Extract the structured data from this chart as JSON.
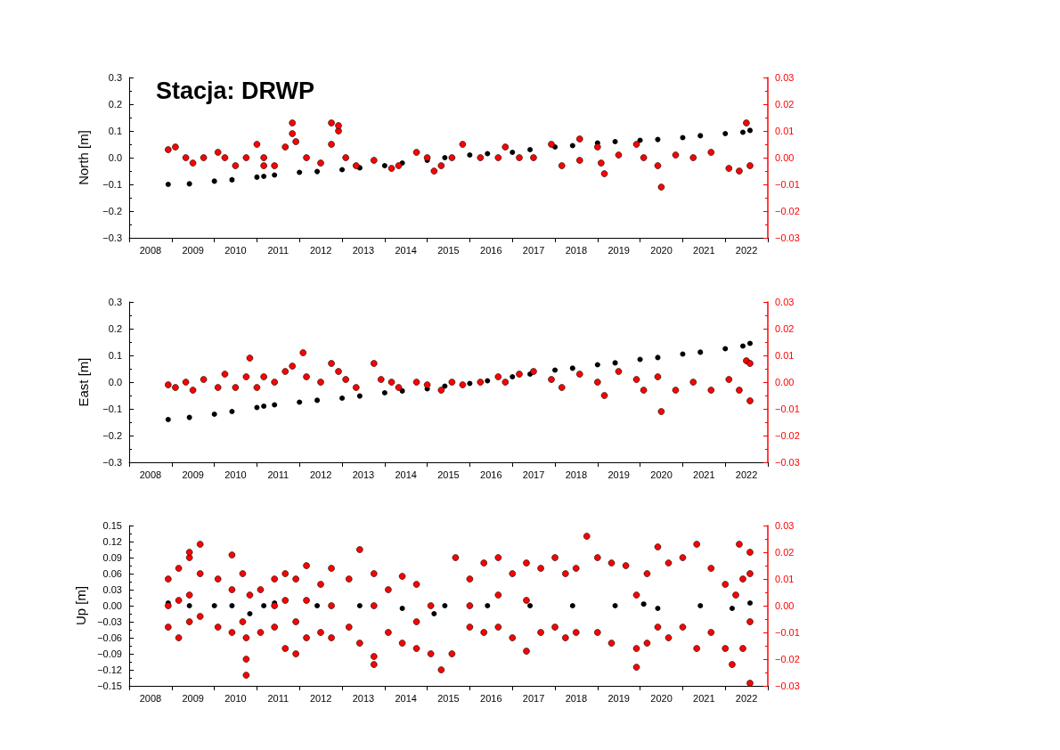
{
  "chart_data": [
    {
      "type": "scatter",
      "title": "Stacja: DRWP",
      "ylabel": "North [m]",
      "marker": "circle",
      "xlim": [
        "2008-01-01",
        "2023-01-01"
      ],
      "xticks": [
        {
          "value": "2008-01-01",
          "label": null
        },
        {
          "value": "2009-01-01",
          "label": null
        },
        {
          "value": "2010-01-01",
          "label": null
        },
        {
          "value": "2011-01-01",
          "label": null
        },
        {
          "value": "2012-01-01",
          "label": null
        },
        {
          "value": "2013-01-01",
          "label": null
        },
        {
          "value": "2014-01-01",
          "label": null
        },
        {
          "value": "2015-01-01",
          "label": null
        },
        {
          "value": "2016-01-01",
          "label": null
        },
        {
          "value": "2017-01-01",
          "label": null
        },
        {
          "value": "2018-01-01",
          "label": null
        },
        {
          "value": "2019-01-01",
          "label": null
        },
        {
          "value": "2020-01-01",
          "label": null
        },
        {
          "value": "2021-01-01",
          "label": null
        },
        {
          "value": "2022-01-01",
          "label": null
        },
        {
          "value": "2023-01-01",
          "label": null
        },
        {
          "value": "2008-07-02",
          "label": "2008"
        },
        {
          "value": "2009-07-02",
          "label": "2009"
        },
        {
          "value": "2010-07-02",
          "label": "2010"
        },
        {
          "value": "2011-07-02",
          "label": "2011"
        },
        {
          "value": "2012-07-02",
          "label": "2012"
        },
        {
          "value": "2013-07-02",
          "label": "2013"
        },
        {
          "value": "2014-07-02",
          "label": "2014"
        },
        {
          "value": "2015-07-02",
          "label": "2015"
        },
        {
          "value": "2016-07-02",
          "label": "2016"
        },
        {
          "value": "2017-07-02",
          "label": "2017"
        },
        {
          "value": "2018-07-02",
          "label": "2018"
        },
        {
          "value": "2019-07-02",
          "label": "2019"
        },
        {
          "value": "2020-07-02",
          "label": "2020"
        },
        {
          "value": "2021-07-02",
          "label": "2021"
        },
        {
          "value": "2022-07-02",
          "label": "2022"
        }
      ],
      "ylim": [
        -0.3,
        0.3
      ],
      "yticks": [
        {
          "value": -0.3,
          "label": "−0.3"
        },
        {
          "value": -0.2,
          "label": "−0.2"
        },
        {
          "value": -0.1,
          "label": "−0.1"
        },
        {
          "value": 0,
          "label": "0.0"
        },
        {
          "value": 0.1,
          "label": "0.1"
        },
        {
          "value": 0.2,
          "label": "0.2"
        },
        {
          "value": 0.3,
          "label": "0.3"
        }
      ],
      "y2lim": [
        -0.03,
        0.03
      ],
      "y2ticks": [
        {
          "value": -0.03,
          "label": "−0.03"
        },
        {
          "value": -0.02,
          "label": "−0.02"
        },
        {
          "value": -0.01,
          "label": "−0.01"
        },
        {
          "value": 0,
          "label": "0.00"
        },
        {
          "value": 0.01,
          "label": "0.01"
        },
        {
          "value": 0.02,
          "label": "0.02"
        },
        {
          "value": 0.03,
          "label": "0.03"
        }
      ],
      "series": [
        {
          "color": "#000000",
          "x": [
            "2008-12",
            "2009-06",
            "2010-01",
            "2010-06",
            "2011-01",
            "2011-03",
            "2011-06",
            "2012-01",
            "2012-06",
            "2013-01",
            "2013-06",
            "2014-01",
            "2014-06",
            "2015-01",
            "2015-06",
            "2016-01",
            "2016-06",
            "2017-01",
            "2017-06",
            "2018-01",
            "2018-06",
            "2019-01",
            "2019-06",
            "2020-01",
            "2020-06",
            "2021-01",
            "2021-06",
            "2022-01",
            "2022-06",
            "2022-08"
          ],
          "values": [
            -0.1,
            -0.098,
            -0.088,
            -0.083,
            -0.073,
            -0.07,
            -0.065,
            -0.055,
            -0.052,
            -0.045,
            -0.038,
            -0.03,
            -0.02,
            -0.01,
            0.0,
            0.01,
            0.015,
            0.02,
            0.03,
            0.04,
            0.045,
            0.055,
            0.06,
            0.065,
            0.068,
            0.075,
            0.082,
            0.09,
            0.095,
            0.102
          ]
        },
        {
          "color": "#ff0000",
          "axis": "y2",
          "x": [
            "2008-12",
            "2009-02",
            "2009-05",
            "2009-07",
            "2009-10",
            "2010-02",
            "2010-04",
            "2010-07",
            "2010-10",
            "2011-01",
            "2011-03",
            "2011-03",
            "2011-06",
            "2011-09",
            "2011-11",
            "2011-11",
            "2011-12",
            "2012-03",
            "2012-07",
            "2012-10",
            "2012-10",
            "2012-12",
            "2012-12",
            "2013-02",
            "2013-05",
            "2013-10",
            "2014-03",
            "2014-05",
            "2014-10",
            "2015-01",
            "2015-03",
            "2015-05",
            "2015-08",
            "2015-11",
            "2016-04",
            "2016-09",
            "2016-11",
            "2017-03",
            "2017-07",
            "2017-12",
            "2018-03",
            "2018-08",
            "2018-08",
            "2019-01",
            "2019-02",
            "2019-03",
            "2019-07",
            "2019-12",
            "2020-02",
            "2020-06",
            "2020-07",
            "2020-11",
            "2021-04",
            "2021-09",
            "2022-02",
            "2022-05",
            "2022-07",
            "2022-08"
          ],
          "values": [
            0.003,
            0.004,
            0.0,
            -0.002,
            0.0,
            0.002,
            0.0,
            -0.003,
            0.0,
            0.005,
            0.0,
            -0.003,
            -0.003,
            0.004,
            0.009,
            0.013,
            0.006,
            0.0,
            -0.002,
            0.005,
            0.013,
            0.01,
            0.012,
            0.0,
            -0.003,
            -0.001,
            -0.004,
            -0.003,
            0.002,
            0.0,
            -0.005,
            -0.003,
            0.0,
            0.005,
            0.0,
            0.0,
            0.004,
            0.0,
            0.0,
            0.005,
            -0.003,
            -0.001,
            0.007,
            0.004,
            -0.002,
            -0.006,
            0.001,
            0.005,
            0.0,
            -0.003,
            -0.011,
            0.001,
            0.0,
            0.002,
            -0.004,
            -0.005,
            0.013,
            -0.003
          ]
        }
      ]
    },
    {
      "type": "scatter",
      "ylabel": "East [m]",
      "marker": "circle",
      "xlim": [
        "2008-01-01",
        "2023-01-01"
      ],
      "xticks": [
        {
          "value": "2008-01-01",
          "label": null
        },
        {
          "value": "2009-01-01",
          "label": null
        },
        {
          "value": "2010-01-01",
          "label": null
        },
        {
          "value": "2011-01-01",
          "label": null
        },
        {
          "value": "2012-01-01",
          "label": null
        },
        {
          "value": "2013-01-01",
          "label": null
        },
        {
          "value": "2014-01-01",
          "label": null
        },
        {
          "value": "2015-01-01",
          "label": null
        },
        {
          "value": "2016-01-01",
          "label": null
        },
        {
          "value": "2017-01-01",
          "label": null
        },
        {
          "value": "2018-01-01",
          "label": null
        },
        {
          "value": "2019-01-01",
          "label": null
        },
        {
          "value": "2020-01-01",
          "label": null
        },
        {
          "value": "2021-01-01",
          "label": null
        },
        {
          "value": "2022-01-01",
          "label": null
        },
        {
          "value": "2023-01-01",
          "label": null
        },
        {
          "value": "2008-07-02",
          "label": "2008"
        },
        {
          "value": "2009-07-02",
          "label": "2009"
        },
        {
          "value": "2010-07-02",
          "label": "2010"
        },
        {
          "value": "2011-07-02",
          "label": "2011"
        },
        {
          "value": "2012-07-02",
          "label": "2012"
        },
        {
          "value": "2013-07-02",
          "label": "2013"
        },
        {
          "value": "2014-07-02",
          "label": "2014"
        },
        {
          "value": "2015-07-02",
          "label": "2015"
        },
        {
          "value": "2016-07-02",
          "label": "2016"
        },
        {
          "value": "2017-07-02",
          "label": "2017"
        },
        {
          "value": "2018-07-02",
          "label": "2018"
        },
        {
          "value": "2019-07-02",
          "label": "2019"
        },
        {
          "value": "2020-07-02",
          "label": "2020"
        },
        {
          "value": "2021-07-02",
          "label": "2021"
        },
        {
          "value": "2022-07-02",
          "label": "2022"
        }
      ],
      "ylim": [
        -0.3,
        0.3
      ],
      "yticks": [
        {
          "value": -0.3,
          "label": "−0.3"
        },
        {
          "value": -0.2,
          "label": "−0.2"
        },
        {
          "value": -0.1,
          "label": "−0.1"
        },
        {
          "value": 0,
          "label": "0.0"
        },
        {
          "value": 0.1,
          "label": "0.1"
        },
        {
          "value": 0.2,
          "label": "0.2"
        },
        {
          "value": 0.3,
          "label": "0.3"
        }
      ],
      "y2lim": [
        -0.03,
        0.03
      ],
      "y2ticks": [
        {
          "value": -0.03,
          "label": "−0.03"
        },
        {
          "value": -0.02,
          "label": "−0.02"
        },
        {
          "value": -0.01,
          "label": "−0.01"
        },
        {
          "value": 0,
          "label": "0.00"
        },
        {
          "value": 0.01,
          "label": "0.01"
        },
        {
          "value": 0.02,
          "label": "0.02"
        },
        {
          "value": 0.03,
          "label": "0.03"
        }
      ],
      "series": [
        {
          "color": "#000000",
          "x": [
            "2008-12",
            "2009-06",
            "2010-01",
            "2010-06",
            "2011-01",
            "2011-03",
            "2011-06",
            "2012-01",
            "2012-06",
            "2013-01",
            "2013-06",
            "2014-01",
            "2014-06",
            "2015-01",
            "2015-06",
            "2016-01",
            "2016-06",
            "2017-01",
            "2017-06",
            "2018-01",
            "2018-06",
            "2019-01",
            "2019-06",
            "2020-01",
            "2020-06",
            "2021-01",
            "2021-06",
            "2022-01",
            "2022-06",
            "2022-08"
          ],
          "values": [
            -0.14,
            -0.132,
            -0.12,
            -0.11,
            -0.095,
            -0.09,
            -0.085,
            -0.075,
            -0.068,
            -0.06,
            -0.052,
            -0.04,
            -0.033,
            -0.025,
            -0.015,
            -0.005,
            0.005,
            0.02,
            0.03,
            0.045,
            0.052,
            0.065,
            0.072,
            0.085,
            0.092,
            0.105,
            0.112,
            0.125,
            0.135,
            0.145
          ]
        },
        {
          "color": "#ff0000",
          "axis": "y2",
          "x": [
            "2008-12",
            "2009-02",
            "2009-05",
            "2009-07",
            "2009-10",
            "2010-02",
            "2010-04",
            "2010-07",
            "2010-10",
            "2010-11",
            "2011-01",
            "2011-03",
            "2011-06",
            "2011-09",
            "2011-11",
            "2012-02",
            "2012-03",
            "2012-07",
            "2012-10",
            "2012-12",
            "2013-02",
            "2013-05",
            "2013-10",
            "2013-12",
            "2014-03",
            "2014-05",
            "2014-10",
            "2015-01",
            "2015-05",
            "2015-08",
            "2015-11",
            "2016-04",
            "2016-09",
            "2016-11",
            "2017-03",
            "2017-07",
            "2017-12",
            "2018-03",
            "2018-08",
            "2019-01",
            "2019-03",
            "2019-07",
            "2019-12",
            "2020-02",
            "2020-06",
            "2020-07",
            "2020-11",
            "2021-04",
            "2021-09",
            "2022-02",
            "2022-05",
            "2022-07",
            "2022-08",
            "2022-08"
          ],
          "values": [
            -0.001,
            -0.002,
            0.0,
            -0.003,
            0.001,
            -0.002,
            0.003,
            -0.002,
            0.002,
            0.009,
            -0.002,
            0.002,
            0.0,
            0.004,
            0.006,
            0.011,
            0.002,
            0.0,
            0.007,
            0.004,
            0.001,
            -0.002,
            0.007,
            0.001,
            0.0,
            -0.002,
            0.0,
            -0.001,
            -0.003,
            0.0,
            -0.001,
            0.0,
            0.002,
            0.0,
            0.003,
            0.004,
            0.001,
            -0.002,
            0.003,
            0.0,
            -0.005,
            0.004,
            0.001,
            -0.003,
            0.002,
            -0.011,
            -0.003,
            0.0,
            -0.003,
            0.001,
            -0.003,
            0.008,
            0.007,
            -0.007
          ]
        }
      ]
    },
    {
      "type": "scatter",
      "ylabel": "Up [m]",
      "marker": "circle",
      "xlim": [
        "2008-01-01",
        "2023-01-01"
      ],
      "xticks": [
        {
          "value": "2008-01-01",
          "label": null
        },
        {
          "value": "2009-01-01",
          "label": null
        },
        {
          "value": "2010-01-01",
          "label": null
        },
        {
          "value": "2011-01-01",
          "label": null
        },
        {
          "value": "2012-01-01",
          "label": null
        },
        {
          "value": "2013-01-01",
          "label": null
        },
        {
          "value": "2014-01-01",
          "label": null
        },
        {
          "value": "2015-01-01",
          "label": null
        },
        {
          "value": "2016-01-01",
          "label": null
        },
        {
          "value": "2017-01-01",
          "label": null
        },
        {
          "value": "2018-01-01",
          "label": null
        },
        {
          "value": "2019-01-01",
          "label": null
        },
        {
          "value": "2020-01-01",
          "label": null
        },
        {
          "value": "2021-01-01",
          "label": null
        },
        {
          "value": "2022-01-01",
          "label": null
        },
        {
          "value": "2023-01-01",
          "label": null
        },
        {
          "value": "2008-07-02",
          "label": "2008"
        },
        {
          "value": "2009-07-02",
          "label": "2009"
        },
        {
          "value": "2010-07-02",
          "label": "2010"
        },
        {
          "value": "2011-07-02",
          "label": "2011"
        },
        {
          "value": "2012-07-02",
          "label": "2012"
        },
        {
          "value": "2013-07-02",
          "label": "2013"
        },
        {
          "value": "2014-07-02",
          "label": "2014"
        },
        {
          "value": "2015-07-02",
          "label": "2015"
        },
        {
          "value": "2016-07-02",
          "label": "2016"
        },
        {
          "value": "2017-07-02",
          "label": "2017"
        },
        {
          "value": "2018-07-02",
          "label": "2018"
        },
        {
          "value": "2019-07-02",
          "label": "2019"
        },
        {
          "value": "2020-07-02",
          "label": "2020"
        },
        {
          "value": "2021-07-02",
          "label": "2021"
        },
        {
          "value": "2022-07-02",
          "label": "2022"
        }
      ],
      "ylim": [
        -0.15,
        0.15
      ],
      "yticks": [
        {
          "value": -0.15,
          "label": "−0.15"
        },
        {
          "value": -0.12,
          "label": "−0.12"
        },
        {
          "value": -0.09,
          "label": "−0.09"
        },
        {
          "value": -0.06,
          "label": "−0.06"
        },
        {
          "value": -0.03,
          "label": "−0.03"
        },
        {
          "value": 0,
          "label": "0.00"
        },
        {
          "value": 0.03,
          "label": "0.03"
        },
        {
          "value": 0.06,
          "label": "0.06"
        },
        {
          "value": 0.09,
          "label": "0.09"
        },
        {
          "value": 0.12,
          "label": "0.12"
        },
        {
          "value": 0.15,
          "label": "0.15"
        }
      ],
      "y2lim": [
        -0.03,
        0.03
      ],
      "y2ticks": [
        {
          "value": -0.03,
          "label": "−0.03"
        },
        {
          "value": -0.02,
          "label": "−0.02"
        },
        {
          "value": -0.01,
          "label": "−0.01"
        },
        {
          "value": 0,
          "label": "0.00"
        },
        {
          "value": 0.01,
          "label": "0.01"
        },
        {
          "value": 0.02,
          "label": "0.02"
        },
        {
          "value": 0.03,
          "label": "0.03"
        }
      ],
      "series": [
        {
          "color": "#000000",
          "x": [
            "2008-12",
            "2009-06",
            "2010-01",
            "2010-06",
            "2010-11",
            "2011-03",
            "2011-06",
            "2012-06",
            "2013-06",
            "2014-06",
            "2015-03",
            "2015-06",
            "2016-06",
            "2017-06",
            "2018-06",
            "2019-06",
            "2020-02",
            "2020-06",
            "2021-06",
            "2022-03",
            "2022-08"
          ],
          "values": [
            0.005,
            0.0,
            0.0,
            0.0,
            -0.015,
            0.0,
            0.005,
            0.0,
            0.0,
            -0.005,
            -0.015,
            0.0,
            0.0,
            0.0,
            0.0,
            0.0,
            0.003,
            -0.005,
            0.0,
            -0.005,
            0.005
          ]
        },
        {
          "color": "#ff0000",
          "axis": "y2",
          "x": [
            "2008-12",
            "2008-12",
            "2008-12",
            "2009-03",
            "2009-03",
            "2009-03",
            "2009-06",
            "2009-06",
            "2009-06",
            "2009-06",
            "2009-09",
            "2009-09",
            "2009-09",
            "2010-02",
            "2010-02",
            "2010-06",
            "2010-06",
            "2010-06",
            "2010-09",
            "2010-09",
            "2010-10",
            "2010-10",
            "2010-10",
            "2010-11",
            "2011-02",
            "2011-02",
            "2011-06",
            "2011-06",
            "2011-06",
            "2011-09",
            "2011-09",
            "2011-09",
            "2011-12",
            "2011-12",
            "2011-12",
            "2012-03",
            "2012-03",
            "2012-03",
            "2012-07",
            "2012-07",
            "2012-10",
            "2012-10",
            "2012-10",
            "2013-03",
            "2013-03",
            "2013-06",
            "2013-06",
            "2013-10",
            "2013-10",
            "2013-10",
            "2013-10",
            "2014-02",
            "2014-02",
            "2014-06",
            "2014-06",
            "2014-10",
            "2014-10",
            "2014-10",
            "2015-02",
            "2015-02",
            "2015-05",
            "2015-08",
            "2015-09",
            "2016-01",
            "2016-01",
            "2016-01",
            "2016-05",
            "2016-05",
            "2016-09",
            "2016-09",
            "2016-09",
            "2017-01",
            "2017-01",
            "2017-05",
            "2017-05",
            "2017-05",
            "2017-09",
            "2017-09",
            "2018-01",
            "2018-01",
            "2018-04",
            "2018-04",
            "2018-07",
            "2018-07",
            "2018-10",
            "2019-01",
            "2019-01",
            "2019-05",
            "2019-05",
            "2019-09",
            "2019-12",
            "2019-12",
            "2019-12",
            "2020-03",
            "2020-03",
            "2020-06",
            "2020-06",
            "2020-09",
            "2020-09",
            "2021-01",
            "2021-01",
            "2021-05",
            "2021-05",
            "2021-09",
            "2021-09",
            "2022-01",
            "2022-01",
            "2022-03",
            "2022-04",
            "2022-05",
            "2022-06",
            "2022-06",
            "2022-08",
            "2022-08",
            "2022-08",
            "2022-08"
          ],
          "values": [
            0.01,
            -0.008,
            0.0,
            0.014,
            -0.012,
            0.002,
            0.018,
            0.02,
            -0.006,
            0.004,
            0.023,
            0.012,
            -0.004,
            0.01,
            -0.008,
            0.019,
            0.006,
            -0.01,
            0.012,
            -0.006,
            -0.026,
            -0.02,
            -0.012,
            0.004,
            0.006,
            -0.01,
            0.01,
            -0.008,
            0.0,
            0.012,
            -0.016,
            0.002,
            0.01,
            -0.018,
            -0.006,
            0.015,
            -0.012,
            0.002,
            0.008,
            -0.01,
            0.014,
            -0.012,
            0.0,
            0.01,
            -0.008,
            0.021,
            -0.014,
            0.012,
            -0.022,
            -0.019,
            0.0,
            0.006,
            -0.01,
            0.011,
            -0.014,
            0.008,
            -0.016,
            -0.006,
            -0.018,
            0.0,
            -0.024,
            -0.018,
            0.018,
            0.01,
            -0.008,
            0.0,
            0.016,
            -0.01,
            0.018,
            -0.008,
            0.004,
            0.012,
            -0.012,
            0.016,
            -0.017,
            0.002,
            0.014,
            -0.01,
            0.018,
            -0.008,
            0.012,
            -0.012,
            0.014,
            -0.01,
            0.026,
            0.018,
            -0.01,
            0.016,
            -0.014,
            0.015,
            -0.023,
            -0.016,
            0.004,
            0.012,
            -0.014,
            0.022,
            -0.008,
            0.016,
            -0.012,
            0.018,
            -0.008,
            0.023,
            -0.016,
            0.014,
            -0.01,
            0.008,
            -0.016,
            -0.022,
            0.004,
            0.023,
            -0.016,
            0.01,
            0.02,
            -0.029,
            0.012,
            -0.006
          ]
        }
      ]
    }
  ]
}
